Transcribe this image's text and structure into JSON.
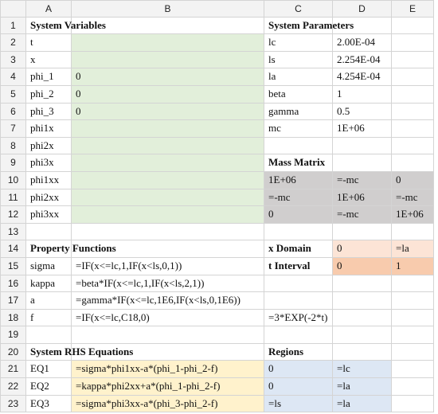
{
  "columns": [
    "A",
    "B",
    "C",
    "D",
    "E"
  ],
  "rows": [
    {
      "n": "1",
      "A": "System Variables",
      "B": "",
      "C": "System Parameters",
      "D": "",
      "E": ""
    },
    {
      "n": "2",
      "A": "t",
      "B": "",
      "C": "lc",
      "D": "2.00E-04",
      "E": ""
    },
    {
      "n": "3",
      "A": "x",
      "B": "",
      "C": "ls",
      "D": "2.254E-04",
      "E": ""
    },
    {
      "n": "4",
      "A": "phi_1",
      "B": "0",
      "C": "la",
      "D": "4.254E-04",
      "E": ""
    },
    {
      "n": "5",
      "A": "phi_2",
      "B": "0",
      "C": "beta",
      "D": "1",
      "E": ""
    },
    {
      "n": "6",
      "A": "phi_3",
      "B": "0",
      "C": "gamma",
      "D": "0.5",
      "E": ""
    },
    {
      "n": "7",
      "A": "phi1x",
      "B": "",
      "C": "mc",
      "D": "1E+06",
      "E": ""
    },
    {
      "n": "8",
      "A": "phi2x",
      "B": "",
      "C": "",
      "D": "",
      "E": ""
    },
    {
      "n": "9",
      "A": "phi3x",
      "B": "",
      "C": "Mass Matrix",
      "D": "",
      "E": ""
    },
    {
      "n": "10",
      "A": "phi1xx",
      "B": "",
      "C": "1E+06",
      "D": "=-mc",
      "E": "0"
    },
    {
      "n": "11",
      "A": "phi2xx",
      "B": "",
      "C": "=-mc",
      "D": "1E+06",
      "E": "=-mc"
    },
    {
      "n": "12",
      "A": "phi3xx",
      "B": "",
      "C": "0",
      "D": "=-mc",
      "E": "1E+06"
    },
    {
      "n": "13",
      "A": "",
      "B": "",
      "C": "",
      "D": "",
      "E": ""
    },
    {
      "n": "14",
      "A": "Property Functions",
      "B": "",
      "C": "x Domain",
      "D": "0",
      "E": "=la"
    },
    {
      "n": "15",
      "A": "sigma",
      "B": "=IF(x<=lc,1,IF(x<ls,0,1))",
      "C": "t Interval",
      "D": "0",
      "E": "1"
    },
    {
      "n": "16",
      "A": "kappa",
      "B": "=beta*IF(x<=lc,1,IF(x<ls,2,1))",
      "C": "",
      "D": "",
      "E": ""
    },
    {
      "n": "17",
      "A": "a",
      "B": "=gamma*IF(x<=lc,1E6,IF(x<ls,0,1E6))",
      "C": "",
      "D": "",
      "E": ""
    },
    {
      "n": "18",
      "A": "f",
      "B": "=IF(x<=lc,C18,0)",
      "C": "=3*EXP(-2*t)",
      "D": "",
      "E": ""
    },
    {
      "n": "19",
      "A": "",
      "B": "",
      "C": "",
      "D": "",
      "E": ""
    },
    {
      "n": "20",
      "A": "System RHS Equations",
      "B": "",
      "C": "Regions",
      "D": "",
      "E": ""
    },
    {
      "n": "21",
      "A": "EQ1",
      "B": "=sigma*phi1xx-a*(phi_1-phi_2-f)",
      "C": "0",
      "D": "=lc",
      "E": ""
    },
    {
      "n": "22",
      "A": "EQ2",
      "B": "=kappa*phi2xx+a*(phi_1-phi_2-f)",
      "C": "0",
      "D": "=la",
      "E": ""
    },
    {
      "n": "23",
      "A": "EQ3",
      "B": "=sigma*phi3xx-a*(phi_3-phi_2-f)",
      "C": "=ls",
      "D": "=la",
      "E": ""
    }
  ],
  "colors": {
    "green": "#e2efda",
    "gray": "#d0cece",
    "peach_light": "#fce4d6",
    "peach": "#f8cbad",
    "yellow": "#fff2cc",
    "blue": "#dde7f4"
  }
}
